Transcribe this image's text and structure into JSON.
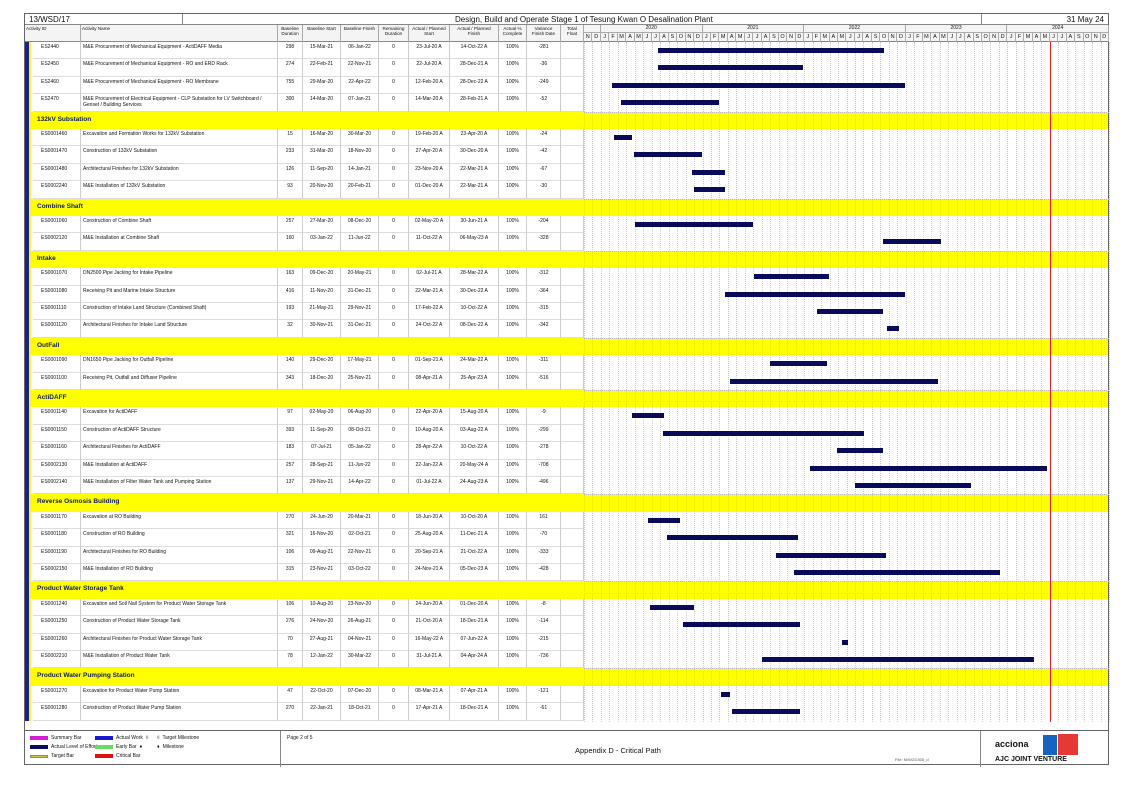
{
  "header": {
    "project_id": "13/WSD/17",
    "title": "Design, Build and Operate Stage 1 of Tesung Kwan O Desalination Plant",
    "data_date": "31 May 24"
  },
  "columns": [
    "Activity ID",
    "Activity Name",
    "Baseline Duration",
    "Baseline Start",
    "Baseline Finish",
    "Remaining Duration",
    "Actual / Planned Start",
    "Actual / Planned Finish",
    "Actual % Complete",
    "Variance Finish Date",
    "Total Float"
  ],
  "timeline": {
    "years": [
      "2020",
      "2021",
      "2022",
      "2023",
      "2024"
    ],
    "months": [
      "N",
      "D",
      "J",
      "F",
      "M",
      "A",
      "M",
      "J",
      "J",
      "A",
      "S",
      "O",
      "N",
      "D",
      "J",
      "F",
      "M",
      "A",
      "M",
      "J",
      "J",
      "A",
      "S",
      "O",
      "N",
      "D",
      "J",
      "F",
      "M",
      "A",
      "M",
      "J",
      "J",
      "A",
      "S",
      "O",
      "N",
      "D",
      "J",
      "F",
      "M",
      "A",
      "M",
      "J",
      "J",
      "A",
      "S",
      "O",
      "N",
      "D",
      "J",
      "F",
      "M",
      "A",
      "M",
      "J",
      "J",
      "A",
      "S",
      "O",
      "N",
      "D"
    ],
    "bar_color": "#0a0a5a",
    "data_date_line_color": "#e02020",
    "section_color": "#ffff00"
  },
  "sections": [
    {
      "title": null,
      "activities": [
        {
          "id": "ES2440",
          "name": "M&E Procurement of Mechanical Equipment - ActiDAFF Media",
          "bdur": "298",
          "bstart": "15-Mar-21",
          "bfinish": "06-Jan-22",
          "rdur": "0",
          "astart": "23-Jul-20 A",
          "afinish": "14-Oct-22 A",
          "pct": "100%",
          "var": "-281"
        },
        {
          "id": "ES2450",
          "name": "M&E Procurement of Mechanical Equipment - RO and ERD Rack",
          "bdur": "274",
          "bstart": "22-Feb-21",
          "bfinish": "22-Nov-21",
          "rdur": "0",
          "astart": "22-Jul-20 A",
          "afinish": "28-Dec-21 A",
          "pct": "100%",
          "var": "-36"
        },
        {
          "id": "ES2460",
          "name": "M&E Procurement of Mechanical Equipment - RO Membrane",
          "bdur": "755",
          "bstart": "29-Mar-20",
          "bfinish": "22-Apr-22",
          "rdur": "0",
          "astart": "12-Feb-20 A",
          "afinish": "28-Dec-22 A",
          "pct": "100%",
          "var": "-249"
        },
        {
          "id": "ES2470",
          "name": "M&E Procurement of Electrical Equipment - CLP Substation for LV Switchboard / Genset / Building Services",
          "bdur": "300",
          "bstart": "14-Mar-20",
          "bfinish": "07-Jan-21",
          "rdur": "0",
          "astart": "14-Mar-20 A",
          "afinish": "28-Feb-21 A",
          "pct": "100%",
          "var": "-52"
        }
      ]
    },
    {
      "title": "132kV Substation",
      "activities": [
        {
          "id": "ES0001460",
          "name": "Excavation and Formation Works for 132kV Substation",
          "bdur": "15",
          "bstart": "16-Mar-20",
          "bfinish": "30-Mar-20",
          "rdur": "0",
          "astart": "19-Feb-20 A",
          "afinish": "23-Apr-20 A",
          "pct": "100%",
          "var": "-24"
        },
        {
          "id": "ES0001470",
          "name": "Construction of 132kV Substation",
          "bdur": "233",
          "bstart": "31-Mar-20",
          "bfinish": "18-Nov-20",
          "rdur": "0",
          "astart": "27-Apr-20 A",
          "afinish": "30-Dec-20 A",
          "pct": "100%",
          "var": "-42"
        },
        {
          "id": "ES0001480",
          "name": "Architectural Finishes for 132kV Substation",
          "bdur": "126",
          "bstart": "11-Sep-20",
          "bfinish": "14-Jan-21",
          "rdur": "0",
          "astart": "23-Nov-20 A",
          "afinish": "22-Mar-21 A",
          "pct": "100%",
          "var": "-67"
        },
        {
          "id": "ES0002240",
          "name": "M&E Installation of 132kV Substation",
          "bdur": "93",
          "bstart": "20-Nov-20",
          "bfinish": "20-Feb-21",
          "rdur": "0",
          "astart": "01-Dec-20 A",
          "afinish": "22-Mar-21 A",
          "pct": "100%",
          "var": "-30"
        }
      ]
    },
    {
      "title": "Combine Shaft",
      "activities": [
        {
          "id": "ES0001060",
          "name": "Construction of Combine Shaft",
          "bdur": "257",
          "bstart": "27-Mar-20",
          "bfinish": "08-Dec-20",
          "rdur": "0",
          "astart": "02-May-20 A",
          "afinish": "30-Jun-21 A",
          "pct": "100%",
          "var": "-204"
        },
        {
          "id": "ES0002120",
          "name": "M&E Installation at Combine Shaft",
          "bdur": "160",
          "bstart": "03-Jan-22",
          "bfinish": "11-Jun-22",
          "rdur": "0",
          "astart": "11-Oct-22 A",
          "afinish": "06-May-23 A",
          "pct": "100%",
          "var": "-328"
        }
      ]
    },
    {
      "title": "Intake",
      "activities": [
        {
          "id": "ES0001070",
          "name": "DN2500 Pipe Jacking for Intake Pipeline",
          "bdur": "163",
          "bstart": "09-Dec-20",
          "bfinish": "20-May-21",
          "rdur": "0",
          "astart": "02-Jul-21 A",
          "afinish": "28-Mar-22 A",
          "pct": "100%",
          "var": "-312"
        },
        {
          "id": "ES0001080",
          "name": "Receiving Pit and Marine Intake Structure",
          "bdur": "416",
          "bstart": "11-Nov-20",
          "bfinish": "31-Dec-21",
          "rdur": "0",
          "astart": "22-Mar-21 A",
          "afinish": "30-Dec-22 A",
          "pct": "100%",
          "var": "-364"
        },
        {
          "id": "ES0001110",
          "name": "Construction of Intake Land Structure (Combined Shaft)",
          "bdur": "193",
          "bstart": "21-May-21",
          "bfinish": "29-Nov-21",
          "rdur": "0",
          "astart": "17-Feb-22 A",
          "afinish": "10-Oct-22 A",
          "pct": "100%",
          "var": "-315"
        },
        {
          "id": "ES0001120",
          "name": "Architectural Finishes for Intake Land Structure",
          "bdur": "32",
          "bstart": "30-Nov-21",
          "bfinish": "31-Dec-21",
          "rdur": "0",
          "astart": "24-Oct-22 A",
          "afinish": "08-Dec-22 A",
          "pct": "100%",
          "var": "-342"
        }
      ]
    },
    {
      "title": "OutFall",
      "activities": [
        {
          "id": "ES0001090",
          "name": "DN1650 Pipe Jacking for Outfall Pipeline",
          "bdur": "140",
          "bstart": "29-Dec-20",
          "bfinish": "17-May-21",
          "rdur": "0",
          "astart": "01-Sep-21 A",
          "afinish": "24-Mar-22 A",
          "pct": "100%",
          "var": "-311"
        },
        {
          "id": "ES0001100",
          "name": "Receiving Pit, Outfall and Diffuser Pipeline",
          "bdur": "343",
          "bstart": "18-Dec-20",
          "bfinish": "25-Nov-21",
          "rdur": "0",
          "astart": "08-Apr-21 A",
          "afinish": "25-Apr-23 A",
          "pct": "100%",
          "var": "-516"
        }
      ]
    },
    {
      "title": "ActiDAFF",
      "activities": [
        {
          "id": "ES0001140",
          "name": "Excavation for ActiDAFF",
          "bdur": "97",
          "bstart": "02-May-20",
          "bfinish": "06-Aug-20",
          "rdur": "0",
          "astart": "22-Apr-20 A",
          "afinish": "15-Aug-20 A",
          "pct": "100%",
          "var": "-9"
        },
        {
          "id": "ES0001150",
          "name": "Construction of ActiDAFF Structure",
          "bdur": "393",
          "bstart": "11-Sep-20",
          "bfinish": "08-Oct-21",
          "rdur": "0",
          "astart": "10-Aug-20 A",
          "afinish": "03-Aug-22 A",
          "pct": "100%",
          "var": "-299"
        },
        {
          "id": "ES0001160",
          "name": "Architectural Finishes for ActiDAFF",
          "bdur": "183",
          "bstart": "07-Jul-21",
          "bfinish": "05-Jan-22",
          "rdur": "0",
          "astart": "28-Apr-22 A",
          "afinish": "10-Oct-22 A",
          "pct": "100%",
          "var": "-278"
        },
        {
          "id": "ES0002130",
          "name": "M&E Installation at ActiDAFF",
          "bdur": "257",
          "bstart": "28-Sep-21",
          "bfinish": "11-Jun-22",
          "rdur": "0",
          "astart": "22-Jan-22 A",
          "afinish": "20-May-24 A",
          "pct": "100%",
          "var": "-708"
        },
        {
          "id": "ES0002140",
          "name": "M&E Installation of Filter Water Tank and Pumping Station",
          "bdur": "137",
          "bstart": "29-Nov-21",
          "bfinish": "14-Apr-22",
          "rdur": "0",
          "astart": "01-Jul-22 A",
          "afinish": "24-Aug-23 A",
          "pct": "100%",
          "var": "-496"
        }
      ]
    },
    {
      "title": "Reverse Osmosis Building",
      "activities": [
        {
          "id": "ES0001170",
          "name": "Excavation at RO Building",
          "bdur": "270",
          "bstart": "24-Jun-20",
          "bfinish": "20-Mar-21",
          "rdur": "0",
          "astart": "18-Jun-20 A",
          "afinish": "10-Oct-20 A",
          "pct": "100%",
          "var": "161"
        },
        {
          "id": "ES0001180",
          "name": "Construction of RO Building",
          "bdur": "321",
          "bstart": "16-Nov-20",
          "bfinish": "02-Oct-21",
          "rdur": "0",
          "astart": "25-Aug-20 A",
          "afinish": "11-Dec-21 A",
          "pct": "100%",
          "var": "-70"
        },
        {
          "id": "ES0001190",
          "name": "Architectural Finishes for RO Building",
          "bdur": "106",
          "bstart": "09-Aug-21",
          "bfinish": "22-Nov-21",
          "rdur": "0",
          "astart": "20-Sep-21 A",
          "afinish": "21-Oct-22 A",
          "pct": "100%",
          "var": "-333"
        },
        {
          "id": "ES0002150",
          "name": "M&E Installation of RO Building",
          "bdur": "315",
          "bstart": "23-Nov-21",
          "bfinish": "03-Oct-22",
          "rdur": "0",
          "astart": "24-Nov-21 A",
          "afinish": "05-Dec-23 A",
          "pct": "100%",
          "var": "-428"
        }
      ]
    },
    {
      "title": "Product Water Storage Tank",
      "activities": [
        {
          "id": "ES0001240",
          "name": "Excavation and Soil Nail System for Product Water Storage Tank",
          "bdur": "106",
          "bstart": "10-Aug-20",
          "bfinish": "23-Nov-20",
          "rdur": "0",
          "astart": "24-Jun-20 A",
          "afinish": "01-Dec-20 A",
          "pct": "100%",
          "var": "-8"
        },
        {
          "id": "ES0001250",
          "name": "Construction of Product Water Storage Tank",
          "bdur": "276",
          "bstart": "24-Nov-20",
          "bfinish": "26-Aug-21",
          "rdur": "0",
          "astart": "21-Oct-20 A",
          "afinish": "18-Dec-21 A",
          "pct": "100%",
          "var": "-114"
        },
        {
          "id": "ES0001260",
          "name": "Architectural Finishes for Product Water Storage Tank",
          "bdur": "70",
          "bstart": "27-Aug-21",
          "bfinish": "04-Nov-21",
          "rdur": "0",
          "astart": "16-May-22 A",
          "afinish": "07-Jun-22 A",
          "pct": "100%",
          "var": "-215"
        },
        {
          "id": "ES0002210",
          "name": "M&E Installation of Product Water Tank",
          "bdur": "78",
          "bstart": "12-Jan-22",
          "bfinish": "30-Mar-22",
          "rdur": "0",
          "astart": "31-Jul-21 A",
          "afinish": "04-Apr-24 A",
          "pct": "100%",
          "var": "-736"
        }
      ]
    },
    {
      "title": "Product Water Pumping Station",
      "activities": [
        {
          "id": "ES0001270",
          "name": "Excavation for Product Water Pump Station",
          "bdur": "47",
          "bstart": "22-Oct-20",
          "bfinish": "07-Dec-20",
          "rdur": "0",
          "astart": "08-Mar-21 A",
          "afinish": "07-Apr-21 A",
          "pct": "100%",
          "var": "-121"
        },
        {
          "id": "ES0001280",
          "name": "Construction of Product Water Pump Station",
          "bdur": "270",
          "bstart": "22-Jan-21",
          "bfinish": "18-Oct-21",
          "rdur": "0",
          "astart": "17-Apr-21 A",
          "afinish": "18-Dec-21 A",
          "pct": "100%",
          "var": "-61"
        }
      ]
    }
  ],
  "legend": [
    {
      "label": "Summary Bar",
      "color": "#d81bd8"
    },
    {
      "label": "Actual Level of Effort",
      "color": "#0a0a5a"
    },
    {
      "label": "Target Bar",
      "color": "#c8c84a"
    },
    {
      "label": "Actual Work",
      "color": "#1a1ad0",
      "mark": "◊"
    },
    {
      "label": "Early Bar",
      "color": "#66dd66",
      "mark": "♦"
    },
    {
      "label": "Critical Bar",
      "color": "#e01010"
    },
    {
      "label": "Target Milestone",
      "mark": "◊"
    },
    {
      "label": "Milestone",
      "mark": "♦"
    }
  ],
  "footer": {
    "page": "Page 2 of 5",
    "appendix": "Appendix D - Critical Path",
    "file": "File: M/W2/2405_d",
    "logo_text": "acciona",
    "jv": "AJC JOINT VENTURE"
  }
}
